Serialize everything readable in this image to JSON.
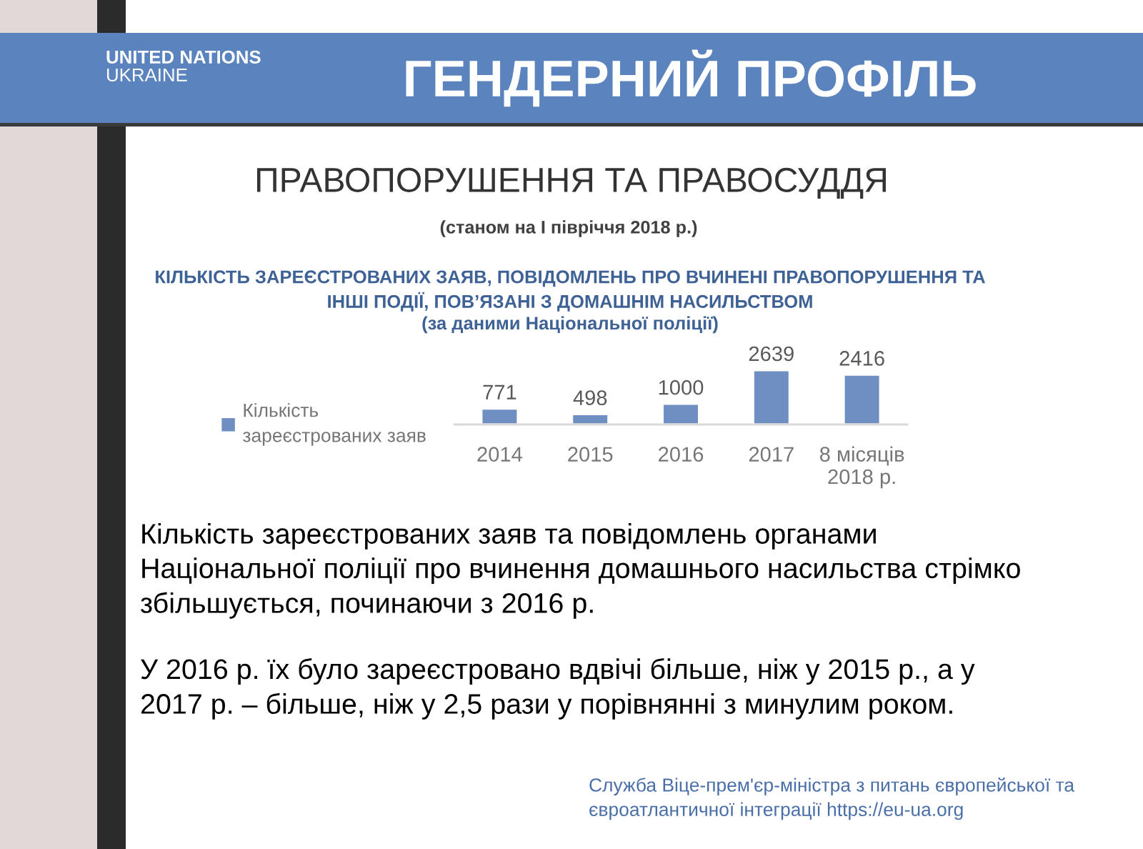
{
  "chart_data": {
    "type": "bar",
    "title": "ПРАВОПОРУШЕННЯ ТА ПРАВОСУДДЯ",
    "subtitle": "(станом на I півріччя 2018 р.)",
    "categories": [
      "2014",
      "2015",
      "2016",
      "2017",
      "8 місяців\n2018 р."
    ],
    "series": [
      {
        "name": "Кількість\nзареєстрованих заяв",
        "color": "#6f8fc2",
        "values": [
          771,
          498,
          1000,
          2639,
          2416
        ]
      }
    ],
    "data_labels": true,
    "legend": "left",
    "tick_labels": "x",
    "annotations": [
      "ГЕНДЕРНИЙ ПРОФІЛЬ",
      "UNITED NATIONS\nUKRAINE",
      "КІЛЬКІСТЬ ЗАРЕЄСТРОВАНИХ ЗАЯВ, ПОВІДОМЛЕНЬ ПРО ВЧИНЕНІ ПРАВОПОРУШЕННЯ ТА\nІНШІ ПОДІЇ, ПОВ’ЯЗАНІ З ДОМАШНІМ НАСИЛЬСТВОМ\n(за даними Національної поліції)",
      "Кількість зареєстрованих заяв та повідомлень органами\nНаціональної поліції про вчинення домашнього насильства стрімко\nзбільшується, починаючи з 2016 р.",
      "У 2016 р. їх було зареєстровано вдвічі більше, ніж у 2015 р., а у\n2017 р. – більше, ніж у 2,5 рази у порівнянні з минулим роком.",
      "Служба Віце-прем'єр-міністра з питань європейської та\nєвроатлантичної інтеграції https://eu-ua.org"
    ]
  }
}
